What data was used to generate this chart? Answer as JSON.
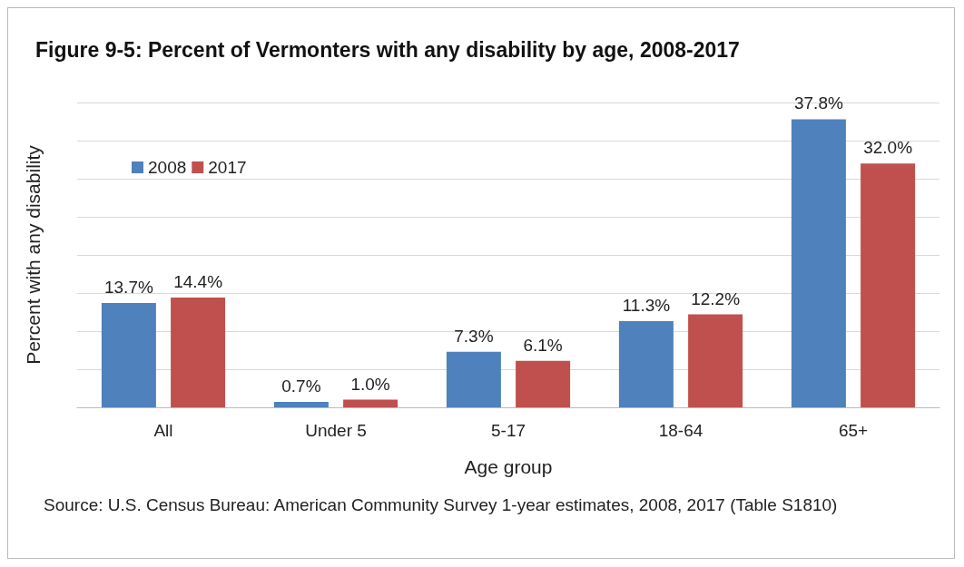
{
  "chart_data": {
    "type": "bar",
    "title": "Figure 9-5: Percent of Vermonters with any disability by age, 2008-2017",
    "xlabel": "Age group",
    "ylabel": "Percent with any disability",
    "categories": [
      "All",
      "Under 5",
      "5-17",
      "18-64",
      "65+"
    ],
    "series": [
      {
        "name": "2008",
        "color": "#4f81bd",
        "values": [
          13.7,
          0.7,
          7.3,
          11.3,
          37.8
        ],
        "value_labels": [
          "13.7%",
          "0.7%",
          "7.3%",
          "11.3%",
          "37.8%"
        ]
      },
      {
        "name": "2017",
        "color": "#c0504d",
        "values": [
          14.4,
          1.0,
          6.1,
          12.2,
          32.0
        ],
        "value_labels": [
          "14.4%",
          "1.0%",
          "6.1%",
          "12.2%",
          "32.0%"
        ]
      }
    ],
    "ylim": [
      0,
      40
    ],
    "yticks": [
      {
        "value": 0,
        "label": null
      },
      {
        "value": 5,
        "label": null
      },
      {
        "value": 10,
        "label": null
      },
      {
        "value": 15,
        "label": null
      },
      {
        "value": 20,
        "label": null
      },
      {
        "value": 25,
        "label": null
      },
      {
        "value": 30,
        "label": null
      },
      {
        "value": 35,
        "label": null
      },
      {
        "value": 40,
        "label": null
      }
    ],
    "grid": "y",
    "legend": "top left",
    "tick_labels": "x",
    "annotations": [
      "Source: U.S. Census Bureau: American Community Survey 1-year estimates, 2008, 2017 (Table S1810)"
    ]
  }
}
